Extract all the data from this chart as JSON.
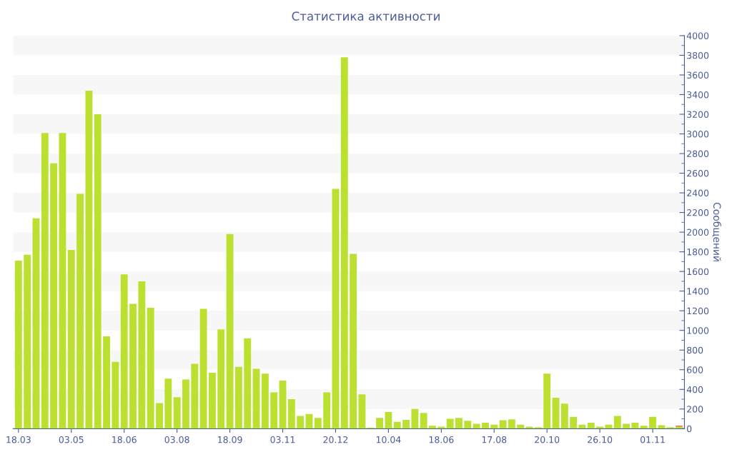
{
  "chart_data": {
    "type": "bar",
    "title": "Статистика активности",
    "y2label": "Сообщений",
    "categories": [
      "18.03",
      null,
      null,
      null,
      null,
      null,
      "03.05",
      null,
      null,
      null,
      null,
      null,
      "18.06",
      null,
      null,
      null,
      null,
      null,
      "03.08",
      null,
      null,
      null,
      null,
      null,
      "18.09",
      null,
      null,
      null,
      null,
      null,
      "03.11",
      null,
      null,
      null,
      null,
      null,
      "20.12",
      null,
      null,
      null,
      null,
      null,
      "10.04",
      null,
      null,
      null,
      null,
      null,
      "18.06",
      null,
      null,
      null,
      null,
      null,
      "17.08",
      null,
      null,
      null,
      null,
      null,
      "20.10",
      null,
      null,
      null,
      null,
      null,
      "26.10",
      null,
      null,
      null,
      null,
      null,
      "01.11",
      null,
      null,
      null
    ],
    "stacked": true,
    "series": [
      {
        "color": "#bbe030",
        "axis": "y2",
        "values": [
          1710,
          1770,
          2140,
          3010,
          2700,
          3010,
          1820,
          2390,
          3440,
          3200,
          940,
          680,
          1570,
          1270,
          1500,
          1230,
          260,
          510,
          320,
          500,
          660,
          1220,
          570,
          1010,
          1980,
          630,
          920,
          610,
          560,
          370,
          490,
          300,
          130,
          150,
          110,
          370,
          2440,
          3780,
          1780,
          350,
          10,
          110,
          170,
          70,
          90,
          200,
          160,
          30,
          20,
          100,
          110,
          80,
          50,
          60,
          40,
          85,
          95,
          40,
          20,
          15,
          560,
          315,
          255,
          120,
          40,
          60,
          20,
          40,
          130,
          50,
          60,
          30,
          120,
          35,
          15,
          20
        ]
      },
      {
        "color": "#e8502a",
        "axis": "y2",
        "values": [
          null,
          null,
          null,
          null,
          null,
          null,
          null,
          null,
          null,
          null,
          null,
          null,
          null,
          null,
          null,
          null,
          null,
          null,
          null,
          null,
          null,
          null,
          null,
          null,
          null,
          null,
          null,
          null,
          null,
          null,
          null,
          null,
          null,
          null,
          null,
          null,
          null,
          null,
          null,
          null,
          null,
          null,
          null,
          null,
          null,
          null,
          null,
          null,
          null,
          null,
          null,
          null,
          null,
          null,
          null,
          null,
          null,
          null,
          null,
          null,
          null,
          null,
          null,
          null,
          null,
          null,
          null,
          null,
          null,
          null,
          null,
          null,
          null,
          null,
          null,
          10
        ]
      }
    ],
    "y2lim": [
      0,
      4000
    ],
    "y2ticks": [
      0,
      200,
      400,
      600,
      800,
      1000,
      1200,
      1400,
      1600,
      1800,
      2000,
      2200,
      2400,
      2600,
      2800,
      3000,
      3200,
      3400,
      3600,
      3800,
      4000
    ],
    "bands": [
      {
        "axis": "y2",
        "from": 200,
        "to": 400,
        "color": "#f7f7f7"
      },
      {
        "axis": "y2",
        "from": 600,
        "to": 800,
        "color": "#f7f7f7"
      },
      {
        "axis": "y2",
        "from": 1000,
        "to": 1200,
        "color": "#f7f7f7"
      },
      {
        "axis": "y2",
        "from": 1400,
        "to": 1600,
        "color": "#f7f7f7"
      },
      {
        "axis": "y2",
        "from": 1800,
        "to": 2000,
        "color": "#f7f7f7"
      },
      {
        "axis": "y2",
        "from": 2200,
        "to": 2400,
        "color": "#f7f7f7"
      },
      {
        "axis": "y2",
        "from": 2600,
        "to": 2800,
        "color": "#f7f7f7"
      },
      {
        "axis": "y2",
        "from": 3000,
        "to": 3200,
        "color": "#f7f7f7"
      },
      {
        "axis": "y2",
        "from": 3400,
        "to": 3600,
        "color": "#f7f7f7"
      },
      {
        "axis": "y2",
        "from": 3800,
        "to": 4000,
        "color": "#f7f7f7"
      }
    ],
    "grid": false,
    "legend": false
  }
}
